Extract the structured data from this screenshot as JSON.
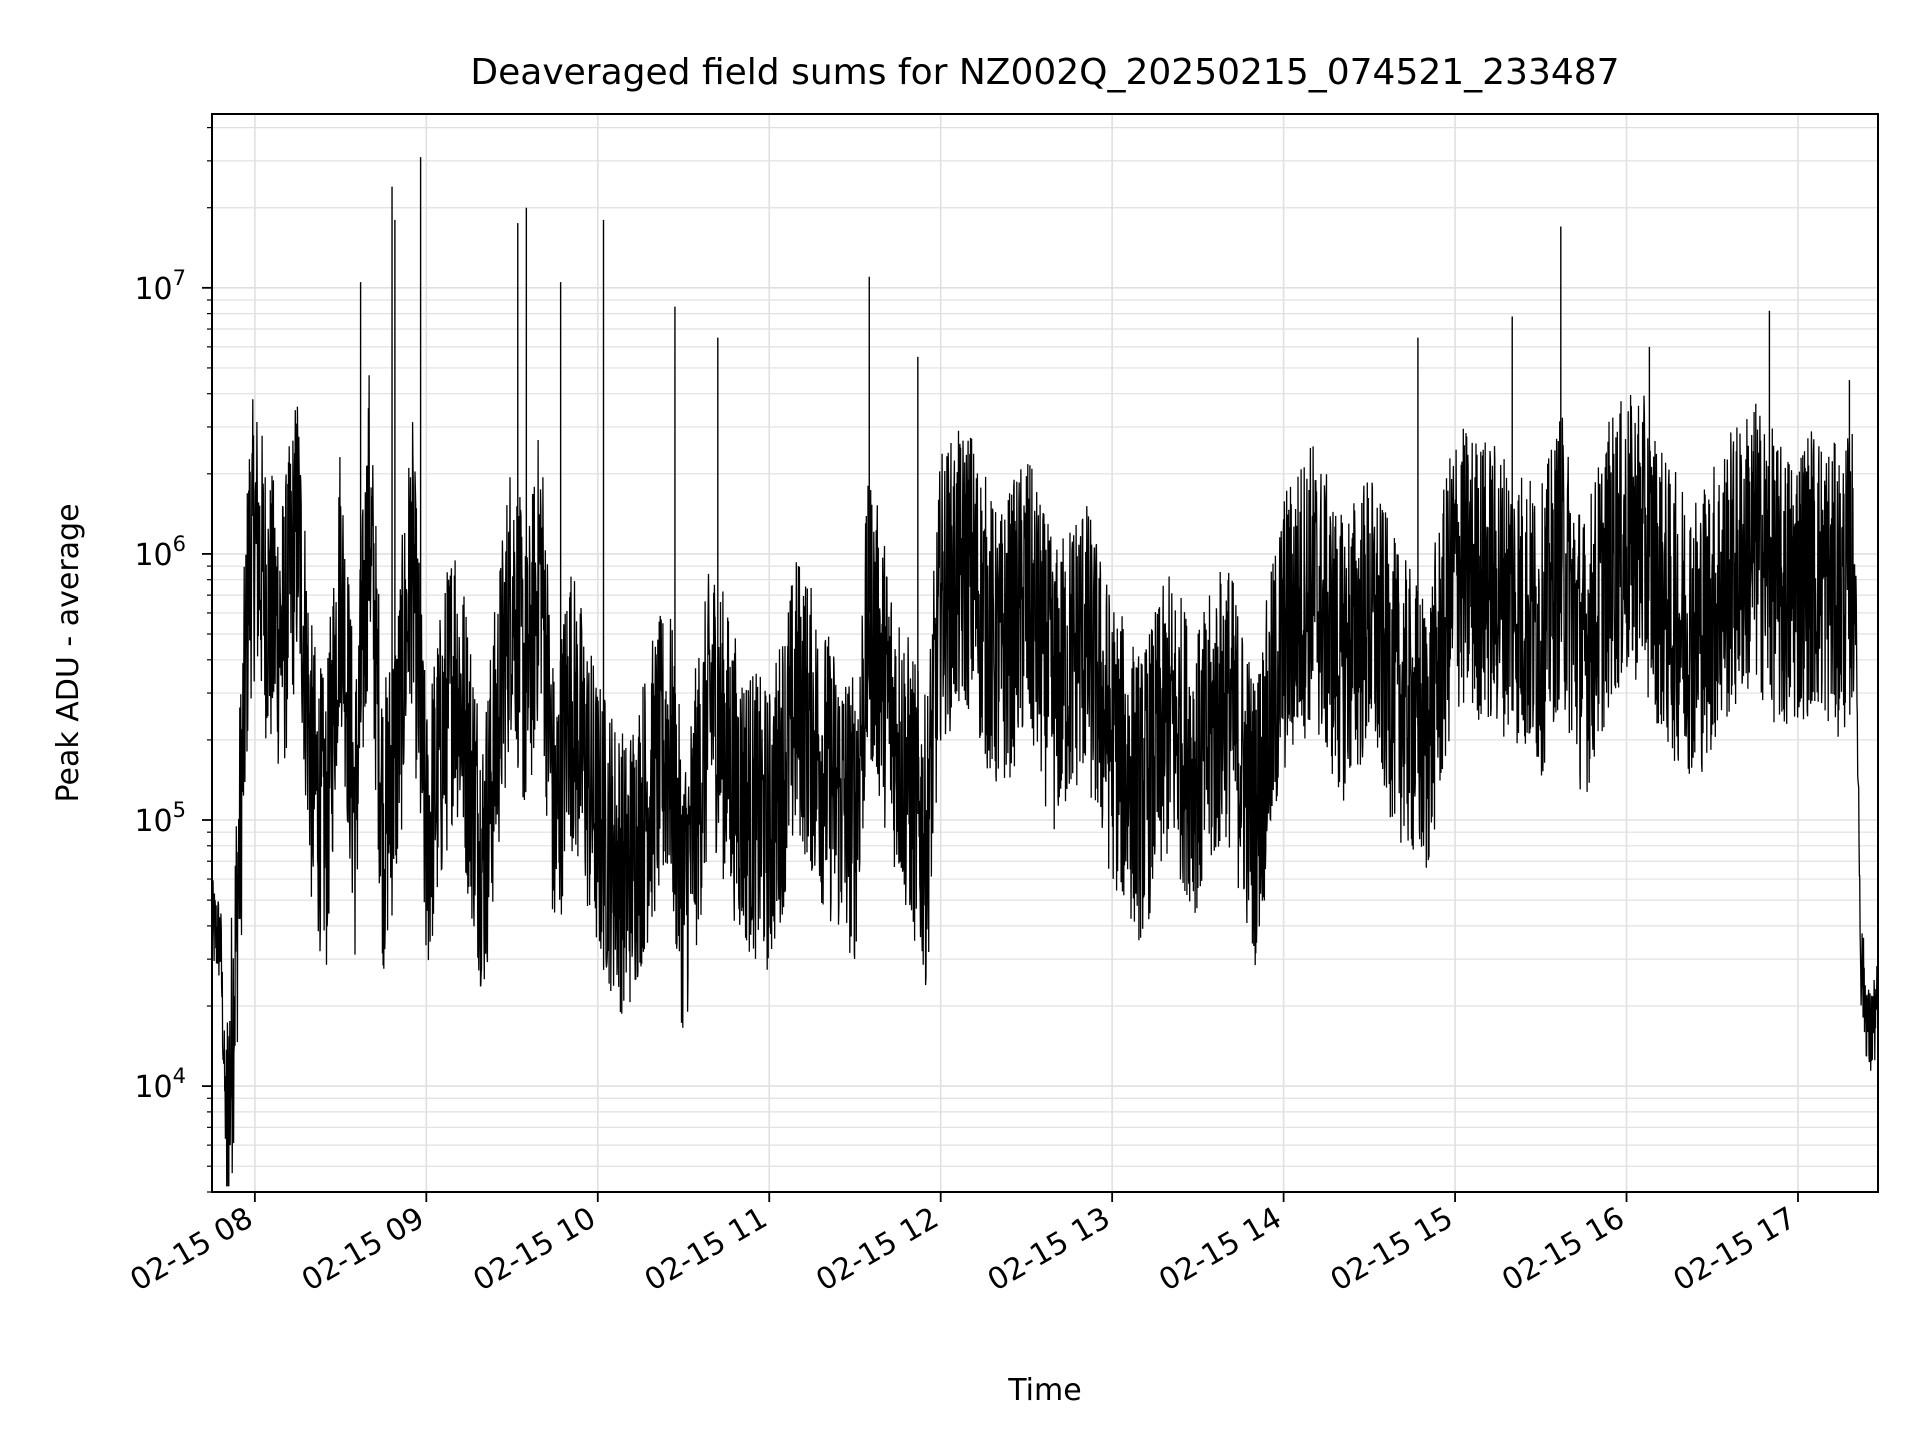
{
  "chart_data": {
    "type": "line",
    "title": "Deaveraged field sums for NZ002Q_20250215_074521_233487",
    "xlabel": "Time",
    "ylabel": "Peak ADU - average",
    "yscale": "log",
    "ylim": [
      4000,
      45000000
    ],
    "xlim": [
      "2025-02-15 07:45",
      "2025-02-15 17:28"
    ],
    "x_ticks": [
      "02-15 08",
      "02-15 09",
      "02-15 10",
      "02-15 11",
      "02-15 12",
      "02-15 13",
      "02-15 14",
      "02-15 15",
      "02-15 16",
      "02-15 17"
    ],
    "y_ticks": [
      {
        "base": "10",
        "exp": "4",
        "value": 10000
      },
      {
        "base": "10",
        "exp": "5",
        "value": 100000
      },
      {
        "base": "10",
        "exp": "6",
        "value": 1000000
      },
      {
        "base": "10",
        "exp": "7",
        "value": 10000000
      }
    ],
    "grid": true,
    "line_color": "#000000",
    "grid_color": "#e0e0e0",
    "series": [
      {
        "x": [
          "2025-02-15 07:45",
          "2025-02-15 07:48",
          "2025-02-15 07:50",
          "2025-02-15 07:52",
          "2025-02-15 07:55",
          "2025-02-15 07:58",
          "2025-02-15 08:00",
          "2025-02-15 08:05",
          "2025-02-15 08:10",
          "2025-02-15 08:15",
          "2025-02-15 08:20",
          "2025-02-15 08:25",
          "2025-02-15 08:30",
          "2025-02-15 08:35",
          "2025-02-15 08:40",
          "2025-02-15 08:45",
          "2025-02-15 08:50",
          "2025-02-15 08:55",
          "2025-02-15 09:00",
          "2025-02-15 09:10",
          "2025-02-15 09:20",
          "2025-02-15 09:30",
          "2025-02-15 09:35",
          "2025-02-15 09:40",
          "2025-02-15 09:45",
          "2025-02-15 09:50",
          "2025-02-15 10:00",
          "2025-02-15 10:10",
          "2025-02-15 10:20",
          "2025-02-15 10:25",
          "2025-02-15 10:30",
          "2025-02-15 10:40",
          "2025-02-15 10:50",
          "2025-02-15 11:00",
          "2025-02-15 11:10",
          "2025-02-15 11:20",
          "2025-02-15 11:30",
          "2025-02-15 11:35",
          "2025-02-15 11:45",
          "2025-02-15 11:55",
          "2025-02-15 12:00",
          "2025-02-15 12:10",
          "2025-02-15 12:20",
          "2025-02-15 12:30",
          "2025-02-15 12:40",
          "2025-02-15 12:50",
          "2025-02-15 13:00",
          "2025-02-15 13:10",
          "2025-02-15 13:20",
          "2025-02-15 13:30",
          "2025-02-15 13:40",
          "2025-02-15 13:50",
          "2025-02-15 14:00",
          "2025-02-15 14:10",
          "2025-02-15 14:20",
          "2025-02-15 14:30",
          "2025-02-15 14:40",
          "2025-02-15 14:50",
          "2025-02-15 15:00",
          "2025-02-15 15:10",
          "2025-02-15 15:20",
          "2025-02-15 15:30",
          "2025-02-15 15:37",
          "2025-02-15 15:45",
          "2025-02-15 15:55",
          "2025-02-15 16:05",
          "2025-02-15 16:15",
          "2025-02-15 16:25",
          "2025-02-15 16:35",
          "2025-02-15 16:45",
          "2025-02-15 16:55",
          "2025-02-15 17:05",
          "2025-02-15 17:15",
          "2025-02-15 17:20",
          "2025-02-15 17:22",
          "2025-02-15 17:25",
          "2025-02-15 17:28"
        ],
        "y": [
          40000,
          35000,
          6000,
          15000,
          100000,
          900000,
          1200000,
          600000,
          500000,
          1300000,
          150000,
          90000,
          900000,
          100000,
          1500000,
          90000,
          200000,
          1000000,
          80000,
          400000,
          70000,
          800000,
          300000,
          1000000,
          90000,
          300000,
          100000,
          60000,
          150000,
          200000,
          50000,
          300000,
          120000,
          90000,
          300000,
          150000,
          100000,
          600000,
          200000,
          80000,
          700000,
          900000,
          400000,
          700000,
          300000,
          500000,
          200000,
          120000,
          250000,
          150000,
          300000,
          100000,
          500000,
          800000,
          400000,
          600000,
          300000,
          200000,
          900000,
          800000,
          700000,
          500000,
          1000000,
          400000,
          1000000,
          1200000,
          600000,
          500000,
          800000,
          1100000,
          700000,
          900000,
          700000,
          900000,
          30000,
          15000,
          20000
        ]
      }
    ],
    "spikes": [
      {
        "x": "2025-02-15 08:37",
        "y": 10500000
      },
      {
        "x": "2025-02-15 08:48",
        "y": 24000000
      },
      {
        "x": "2025-02-15 08:49",
        "y": 18000000
      },
      {
        "x": "2025-02-15 08:58",
        "y": 31000000
      },
      {
        "x": "2025-02-15 09:32",
        "y": 17500000
      },
      {
        "x": "2025-02-15 09:35",
        "y": 20000000
      },
      {
        "x": "2025-02-15 09:47",
        "y": 10500000
      },
      {
        "x": "2025-02-15 10:02",
        "y": 18000000
      },
      {
        "x": "2025-02-15 10:27",
        "y": 8500000
      },
      {
        "x": "2025-02-15 10:42",
        "y": 6500000
      },
      {
        "x": "2025-02-15 11:35",
        "y": 11000000
      },
      {
        "x": "2025-02-15 11:52",
        "y": 5500000
      },
      {
        "x": "2025-02-15 14:47",
        "y": 6500000
      },
      {
        "x": "2025-02-15 15:20",
        "y": 7800000
      },
      {
        "x": "2025-02-15 15:37",
        "y": 17000000
      },
      {
        "x": "2025-02-15 16:08",
        "y": 6000000
      },
      {
        "x": "2025-02-15 16:50",
        "y": 8200000
      },
      {
        "x": "2025-02-15 17:18",
        "y": 4500000
      }
    ]
  }
}
